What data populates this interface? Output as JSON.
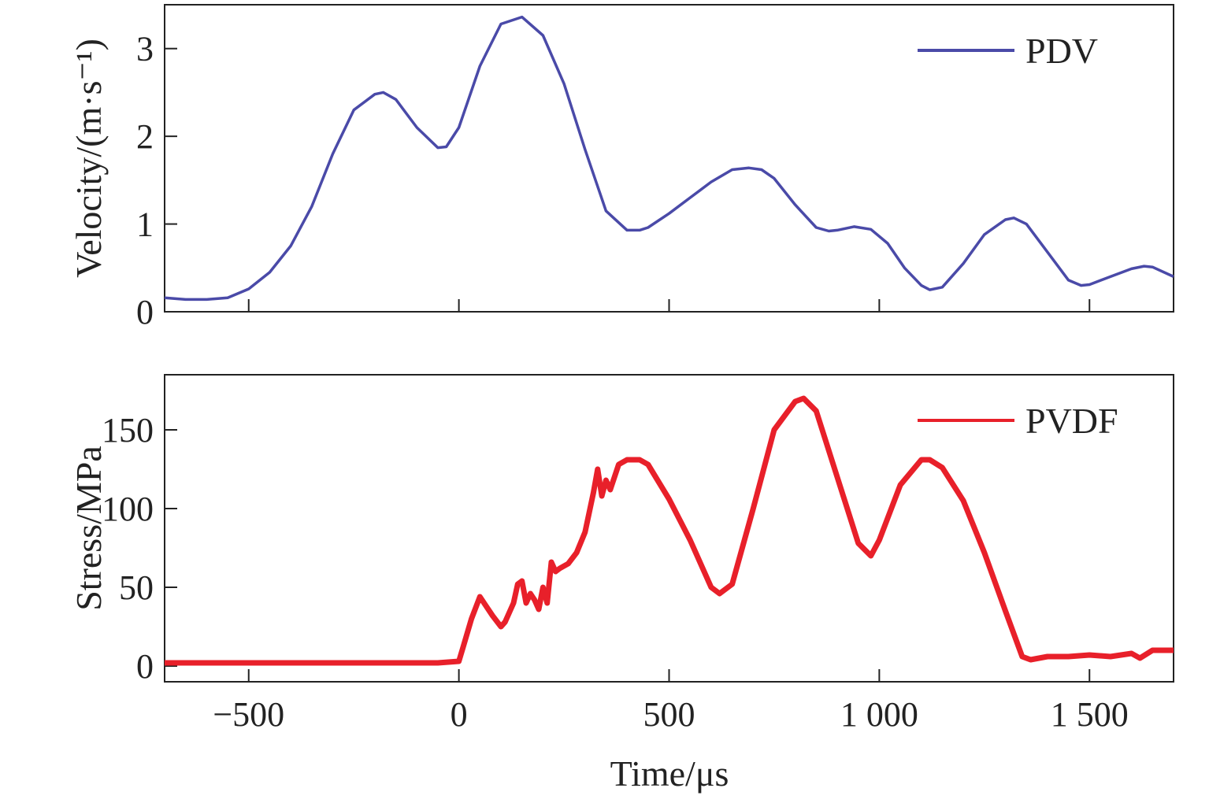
{
  "colors": {
    "pdv": "#4a4aa8",
    "pvdf": "#e8202a",
    "axis": "#222222"
  },
  "chart_data": [
    {
      "type": "line",
      "ylabel": "Velocity/(m·s⁻¹)",
      "xlabel": "",
      "xlim": [
        -700,
        1700
      ],
      "ylim": [
        0,
        3.5
      ],
      "xticks": [
        -500,
        0,
        500,
        1000,
        1500
      ],
      "yticks": [
        0,
        1,
        2,
        3
      ],
      "ytick_labels": [
        "0",
        "1",
        "2",
        "3"
      ],
      "legend": {
        "position": "top-right"
      },
      "series": [
        {
          "name": "PDV",
          "x": [
            -700,
            -650,
            -600,
            -550,
            -500,
            -450,
            -400,
            -350,
            -300,
            -250,
            -200,
            -180,
            -150,
            -100,
            -50,
            -30,
            0,
            50,
            100,
            150,
            200,
            250,
            300,
            350,
            400,
            430,
            450,
            500,
            550,
            600,
            650,
            690,
            720,
            750,
            800,
            850,
            880,
            900,
            940,
            980,
            1020,
            1060,
            1100,
            1120,
            1150,
            1200,
            1250,
            1300,
            1320,
            1350,
            1400,
            1450,
            1480,
            1500,
            1550,
            1600,
            1630,
            1650,
            1700
          ],
          "y": [
            0.16,
            0.14,
            0.14,
            0.16,
            0.26,
            0.45,
            0.75,
            1.2,
            1.8,
            2.3,
            2.48,
            2.5,
            2.42,
            2.1,
            1.87,
            1.88,
            2.1,
            2.8,
            3.28,
            3.36,
            3.15,
            2.6,
            1.85,
            1.15,
            0.93,
            0.93,
            0.96,
            1.12,
            1.3,
            1.48,
            1.62,
            1.64,
            1.62,
            1.52,
            1.22,
            0.96,
            0.92,
            0.93,
            0.97,
            0.94,
            0.78,
            0.5,
            0.3,
            0.25,
            0.28,
            0.55,
            0.88,
            1.05,
            1.07,
            1.0,
            0.68,
            0.36,
            0.3,
            0.31,
            0.4,
            0.49,
            0.52,
            0.51,
            0.4
          ]
        }
      ]
    },
    {
      "type": "line",
      "ylabel": "Stress/MPa",
      "xlabel": "Time/μs",
      "xlim": [
        -700,
        1700
      ],
      "ylim": [
        -10,
        185
      ],
      "xticks": [
        -500,
        0,
        500,
        1000,
        1500
      ],
      "xtick_labels": [
        "−500",
        "0",
        "500",
        "1 000",
        "1 500"
      ],
      "yticks": [
        0,
        50,
        100,
        150
      ],
      "ytick_labels": [
        "0",
        "50",
        "100",
        "150"
      ],
      "legend": {
        "position": "top-right"
      },
      "series": [
        {
          "name": "PVDF",
          "x": [
            -700,
            -600,
            -500,
            -400,
            -300,
            -200,
            -100,
            -50,
            0,
            10,
            30,
            50,
            60,
            80,
            100,
            110,
            130,
            140,
            150,
            160,
            170,
            180,
            190,
            200,
            210,
            220,
            230,
            240,
            260,
            280,
            300,
            320,
            330,
            340,
            350,
            360,
            380,
            400,
            430,
            450,
            500,
            550,
            600,
            620,
            650,
            700,
            750,
            800,
            820,
            850,
            900,
            950,
            980,
            1000,
            1050,
            1100,
            1120,
            1150,
            1200,
            1250,
            1300,
            1340,
            1360,
            1400,
            1450,
            1500,
            1550,
            1600,
            1620,
            1650,
            1700
          ],
          "y": [
            2,
            2,
            2,
            2,
            2,
            2,
            2,
            2,
            3,
            12,
            30,
            44,
            40,
            32,
            25,
            28,
            40,
            52,
            54,
            40,
            46,
            42,
            36,
            50,
            40,
            66,
            60,
            62,
            65,
            72,
            85,
            110,
            125,
            108,
            118,
            112,
            128,
            131,
            131,
            128,
            106,
            80,
            50,
            46,
            52,
            100,
            150,
            168,
            170,
            162,
            120,
            78,
            70,
            80,
            115,
            131,
            131,
            126,
            105,
            72,
            35,
            6,
            4,
            6,
            6,
            7,
            6,
            8,
            5,
            10,
            10
          ]
        }
      ]
    }
  ]
}
